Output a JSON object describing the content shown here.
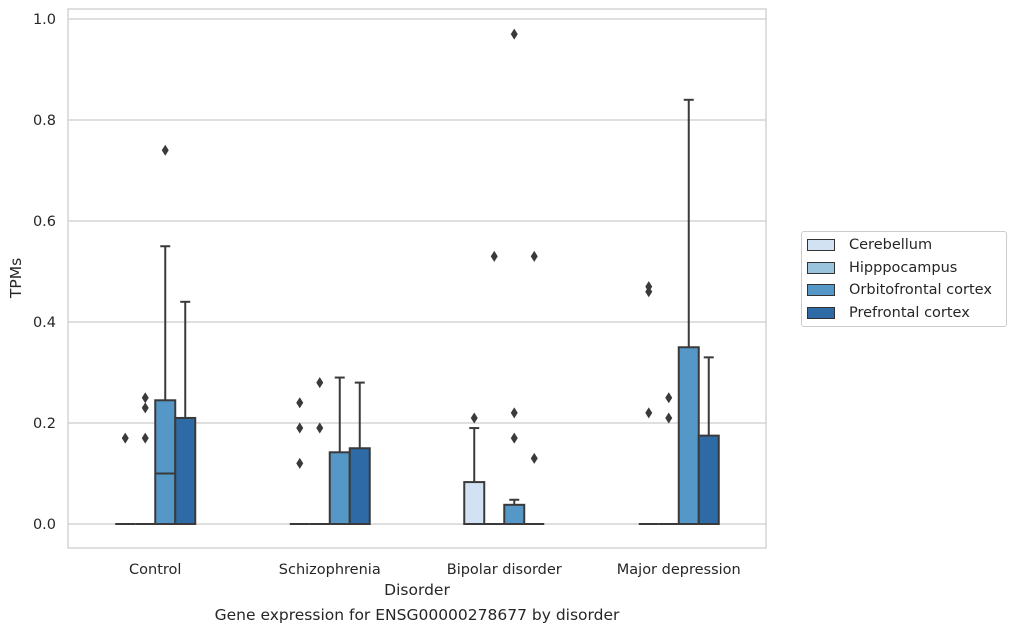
{
  "chart_data": {
    "type": "boxplot",
    "xlabel": "Disorder",
    "ylabel": "TPMs",
    "ylim": [
      -0.047,
      1.02
    ],
    "yticks": [
      "0.0",
      "0.2",
      "0.4",
      "0.6",
      "0.8",
      "1.0"
    ],
    "categories": [
      "Control",
      "Schizophrenia",
      "Bipolar disorder",
      "Major depression"
    ],
    "grid": "horizontal",
    "legend_position": "right",
    "series": [
      {
        "name": "Cerebellum",
        "color": "#d2e2f3",
        "boxes": [
          {
            "q1": 0,
            "median": 0,
            "q3": 0,
            "whisker_low": 0,
            "whisker_high": 0,
            "outliers": [
              0.17
            ]
          },
          {
            "q1": 0,
            "median": 0,
            "q3": 0,
            "whisker_low": 0,
            "whisker_high": 0,
            "outliers": [
              0.12,
              0.19,
              0.24
            ]
          },
          {
            "q1": 0,
            "median": 0,
            "q3": 0.083,
            "whisker_low": 0,
            "whisker_high": 0.19,
            "outliers": [
              0.21
            ]
          },
          {
            "q1": 0,
            "median": 0,
            "q3": 0,
            "whisker_low": 0,
            "whisker_high": 0,
            "outliers": [
              0.22,
              0.46,
              0.47
            ]
          }
        ]
      },
      {
        "name": "Hipppocampus",
        "color": "#9ac3de",
        "boxes": [
          {
            "q1": 0,
            "median": 0,
            "q3": 0,
            "whisker_low": 0,
            "whisker_high": 0,
            "outliers": [
              0.17,
              0.23,
              0.25
            ]
          },
          {
            "q1": 0,
            "median": 0,
            "q3": 0,
            "whisker_low": 0,
            "whisker_high": 0,
            "outliers": [
              0.19,
              0.28
            ]
          },
          {
            "q1": 0,
            "median": 0,
            "q3": 0,
            "whisker_low": 0,
            "whisker_high": 0,
            "outliers": [
              0.53
            ]
          },
          {
            "q1": 0,
            "median": 0,
            "q3": 0,
            "whisker_low": 0,
            "whisker_high": 0,
            "outliers": [
              0.21,
              0.25
            ]
          }
        ]
      },
      {
        "name": "Orbitofrontal cortex",
        "color": "#5597c6",
        "boxes": [
          {
            "q1": 0,
            "median": 0.1,
            "q3": 0.245,
            "whisker_low": 0,
            "whisker_high": 0.55,
            "outliers": [
              0.74
            ]
          },
          {
            "q1": 0,
            "median": 0,
            "q3": 0.142,
            "whisker_low": 0,
            "whisker_high": 0.29,
            "outliers": []
          },
          {
            "q1": 0,
            "median": 0,
            "q3": 0.038,
            "whisker_low": 0,
            "whisker_high": 0.048,
            "outliers": [
              0.17,
              0.22,
              0.97
            ]
          },
          {
            "q1": 0,
            "median": 0,
            "q3": 0.35,
            "whisker_low": 0,
            "whisker_high": 0.84,
            "outliers": []
          }
        ]
      },
      {
        "name": "Prefrontal cortex",
        "color": "#2d6aa6",
        "boxes": [
          {
            "q1": 0,
            "median": 0,
            "q3": 0.21,
            "whisker_low": 0,
            "whisker_high": 0.44,
            "outliers": []
          },
          {
            "q1": 0,
            "median": 0,
            "q3": 0.15,
            "whisker_low": 0,
            "whisker_high": 0.28,
            "outliers": []
          },
          {
            "q1": 0,
            "median": 0,
            "q3": 0,
            "whisker_low": 0,
            "whisker_high": 0,
            "outliers": [
              0.13,
              0.53
            ]
          },
          {
            "q1": 0,
            "median": 0,
            "q3": 0.175,
            "whisker_low": 0,
            "whisker_high": 0.33,
            "outliers": []
          }
        ]
      }
    ]
  },
  "caption": "Gene expression for ENSG00000278677 by disorder"
}
